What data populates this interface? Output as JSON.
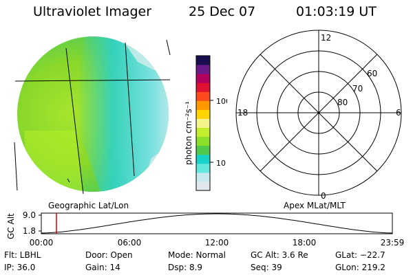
{
  "header": {
    "title": "Ultraviolet Imager",
    "date": "25 Dec 07",
    "time": "01:03:19 UT"
  },
  "colorbar": {
    "unit_label": "photon cm⁻²s⁻¹",
    "ticks": [
      "100",
      "10"
    ],
    "colors": [
      "#e2e9ee",
      "#c5e9ec",
      "#63e6dd",
      "#17d2c9",
      "#4ec94c",
      "#8be02a",
      "#c0ee2c",
      "#f3f58b",
      "#ffd400",
      "#ff9800",
      "#ff4a1e",
      "#e01030",
      "#b00060",
      "#6a1a88",
      "#1b0e50"
    ]
  },
  "polar": {
    "mlt_labels": [
      "12",
      "18",
      "6",
      "0"
    ],
    "lat_labels": [
      "60",
      "70",
      "80"
    ]
  },
  "panel_labels": {
    "left": "Geographic Lat/Lon",
    "right": "Apex MLat/MLT"
  },
  "orbit_plot": {
    "ylabel": "GC Alt",
    "yticks": [
      "9.0",
      "1.8"
    ],
    "xticks": [
      "00:00",
      "06:00",
      "12:00",
      "18:00",
      "23:59"
    ]
  },
  "info": {
    "flt": "Flt: LBHL",
    "ip": "IP: 36.0",
    "door": "Door: Open",
    "gain": "Gain: 14",
    "mode": "Mode: Normal",
    "dsp": "Dsp:    8.9",
    "gcalt": "GC Alt: 3.6 Re",
    "seq": "Seq: 39",
    "glat": "GLat: −22.7",
    "glon": "GLon: 219.2"
  }
}
